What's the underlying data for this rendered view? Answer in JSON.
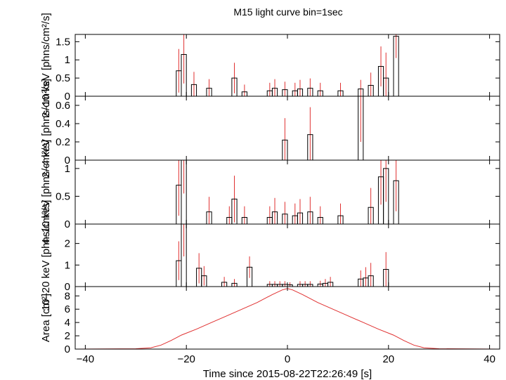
{
  "title": "M15 light curve bin=1sec",
  "xlabel": "Time since 2015-08-22T22:26:49 [s]",
  "colors": {
    "histogram": "#000000",
    "errorbar": "#e03030",
    "area_curve": "#e03030"
  },
  "chart_data": {
    "type": "line",
    "title": "M15 light curve bin=1sec",
    "xlabel": "Time since 2015-08-22T22:26:49 [s]",
    "xlim": [
      -42,
      42
    ],
    "xticks": [
      -40,
      -20,
      0,
      20,
      40
    ],
    "panels": [
      {
        "ylabel": "2–10 keV [phns/cm²/s]",
        "ylim": [
          0,
          1.7
        ],
        "yticks": [
          0,
          0.5,
          1,
          1.5
        ],
        "yticklabels": [
          "0",
          "0.5",
          "1",
          "1.5"
        ],
        "bins": [
          [
            -21.5,
            0.7,
            0.6
          ],
          [
            -20.5,
            1.15,
            0.8
          ],
          [
            -18.5,
            0.32,
            0.35
          ],
          [
            -15.5,
            0.22,
            0.25
          ],
          [
            -10.5,
            0.5,
            0.42
          ],
          [
            -8.5,
            0.12,
            0.2
          ],
          [
            -3.5,
            0.15,
            0.22
          ],
          [
            -2.5,
            0.22,
            0.25
          ],
          [
            -0.5,
            0.18,
            0.22
          ],
          [
            1.5,
            0.15,
            0.22
          ],
          [
            2.5,
            0.2,
            0.25
          ],
          [
            4.5,
            0.22,
            0.27
          ],
          [
            6.5,
            0.15,
            0.22
          ],
          [
            10.5,
            0.15,
            0.22
          ],
          [
            14.5,
            0.2,
            0.25
          ],
          [
            16.5,
            0.3,
            0.35
          ],
          [
            18.5,
            0.82,
            0.55
          ],
          [
            19.5,
            0.5,
            0.7
          ],
          [
            21.5,
            1.65,
            0.6
          ]
        ]
      },
      {
        "ylabel": "2–4 keV [phns/cm²/s]",
        "ylim": [
          0,
          0.7
        ],
        "yticks": [
          0,
          0.2,
          0.4,
          0.6
        ],
        "yticklabels": [
          "0",
          "0.2",
          "0.4",
          "0.6"
        ],
        "bins": [
          [
            -0.5,
            0.22,
            0.24
          ],
          [
            4.5,
            0.28,
            0.3
          ],
          [
            14.5,
            0.7,
            0.5
          ]
        ]
      },
      {
        "ylabel": "4–10 keV [phns/cm²/s]",
        "ylim": [
          0,
          1.15
        ],
        "yticks": [
          0,
          0.5,
          1
        ],
        "yticklabels": [
          "0",
          "0.5",
          "1"
        ],
        "bins": [
          [
            -21.5,
            0.7,
            0.55
          ],
          [
            -20.5,
            1.15,
            0.6
          ],
          [
            -15.5,
            0.22,
            0.27
          ],
          [
            -11.5,
            0.12,
            0.2
          ],
          [
            -10.5,
            0.45,
            0.42
          ],
          [
            -8.5,
            0.12,
            0.2
          ],
          [
            -3.5,
            0.12,
            0.2
          ],
          [
            -2.5,
            0.22,
            0.25
          ],
          [
            -0.5,
            0.18,
            0.22
          ],
          [
            1.5,
            0.15,
            0.22
          ],
          [
            2.5,
            0.2,
            0.25
          ],
          [
            4.5,
            0.22,
            0.27
          ],
          [
            6.5,
            0.12,
            0.2
          ],
          [
            10.5,
            0.15,
            0.22
          ],
          [
            16.5,
            0.3,
            0.35
          ],
          [
            18.5,
            0.85,
            0.5
          ],
          [
            19.5,
            1.0,
            0.6
          ],
          [
            21.5,
            0.78,
            0.55
          ]
        ]
      },
      {
        "ylabel": "10–20 keV [phns/cm²/s]",
        "ylim": [
          0,
          2.9
        ],
        "yticks": [
          0,
          1,
          2
        ],
        "yticklabels": [
          "0",
          "1",
          "2"
        ],
        "bins": [
          [
            -21.5,
            1.2,
            0.9
          ],
          [
            -20.5,
            2.9,
            1.5
          ],
          [
            -17.5,
            0.85,
            0.7
          ],
          [
            -16.5,
            0.5,
            0.45
          ],
          [
            -12.5,
            0.2,
            0.25
          ],
          [
            -10.5,
            0.15,
            0.2
          ],
          [
            -7.5,
            0.9,
            0.5
          ],
          [
            -3.5,
            0.1,
            0.15
          ],
          [
            -2.5,
            0.1,
            0.15
          ],
          [
            -1.5,
            0.1,
            0.15
          ],
          [
            -0.5,
            0.1,
            0.15
          ],
          [
            0.5,
            0.08,
            0.12
          ],
          [
            2.5,
            0.1,
            0.15
          ],
          [
            3.5,
            0.1,
            0.15
          ],
          [
            4.5,
            0.1,
            0.15
          ],
          [
            6.5,
            0.12,
            0.15
          ],
          [
            7.5,
            0.15,
            0.2
          ],
          [
            8.5,
            0.2,
            0.25
          ],
          [
            14.5,
            0.35,
            0.4
          ],
          [
            15.5,
            0.4,
            0.5
          ],
          [
            16.5,
            0.5,
            0.6
          ],
          [
            19.5,
            0.8,
            0.8
          ]
        ]
      },
      {
        "ylabel": "Area [cm²]",
        "ylim": [
          0,
          9.4
        ],
        "yticks": [
          0,
          2,
          4,
          6,
          8
        ],
        "yticklabels": [
          "0",
          "2",
          "4",
          "6",
          "8"
        ],
        "curve": [
          [
            -42,
            0
          ],
          [
            -30,
            0.05
          ],
          [
            -27,
            0.2
          ],
          [
            -25,
            0.6
          ],
          [
            -23,
            1.3
          ],
          [
            -21,
            2.1
          ],
          [
            -18,
            3.0
          ],
          [
            -15,
            4.0
          ],
          [
            -12,
            5.0
          ],
          [
            -9,
            6.0
          ],
          [
            -6,
            7.0
          ],
          [
            -3,
            8.2
          ],
          [
            -1,
            8.9
          ],
          [
            0,
            9.1
          ],
          [
            1,
            8.9
          ],
          [
            3,
            8.2
          ],
          [
            6,
            7.0
          ],
          [
            9,
            6.0
          ],
          [
            12,
            5.0
          ],
          [
            15,
            4.0
          ],
          [
            18,
            3.0
          ],
          [
            21,
            2.1
          ],
          [
            23,
            1.3
          ],
          [
            25,
            0.6
          ],
          [
            27,
            0.2
          ],
          [
            30,
            0.05
          ],
          [
            42,
            0
          ]
        ]
      }
    ]
  }
}
